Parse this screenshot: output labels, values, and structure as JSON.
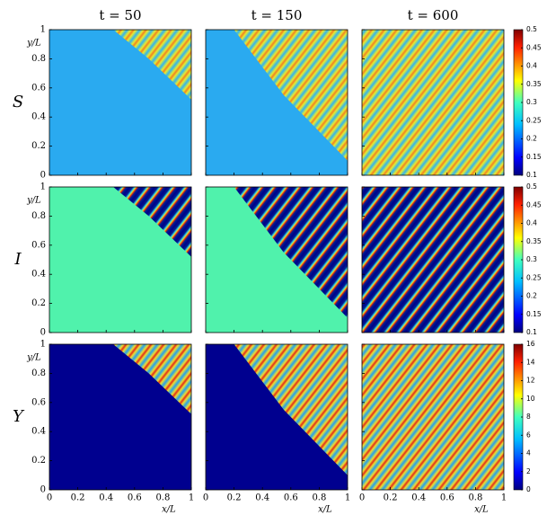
{
  "chart_data": {
    "type": "heatmap",
    "columns": [
      "t = 50",
      "t = 150",
      "t = 600"
    ],
    "rows": [
      "S",
      "I",
      "Y"
    ],
    "xlabel": "x/L",
    "ylabel": "y/L",
    "xlim": [
      0,
      1
    ],
    "xticks": [
      0,
      0.2,
      0.4,
      0.6,
      0.8,
      1
    ],
    "ylim": [
      0,
      1
    ],
    "yticks": [
      0,
      0.2,
      0.4,
      0.6,
      0.8,
      1
    ],
    "colorbars": [
      {
        "lim": [
          0.1,
          0.5
        ],
        "ticks": [
          0.1,
          0.15,
          0.2,
          0.25,
          0.3,
          0.35,
          0.4,
          0.45,
          0.5
        ]
      },
      {
        "lim": [
          0.1,
          0.5
        ],
        "ticks": [
          0.1,
          0.15,
          0.2,
          0.25,
          0.3,
          0.35,
          0.4,
          0.45,
          0.5
        ]
      },
      {
        "lim": [
          0,
          16
        ],
        "ticks": [
          0,
          2,
          4,
          6,
          8,
          10,
          12,
          14,
          16
        ]
      }
    ],
    "colormap": "jet"
  }
}
